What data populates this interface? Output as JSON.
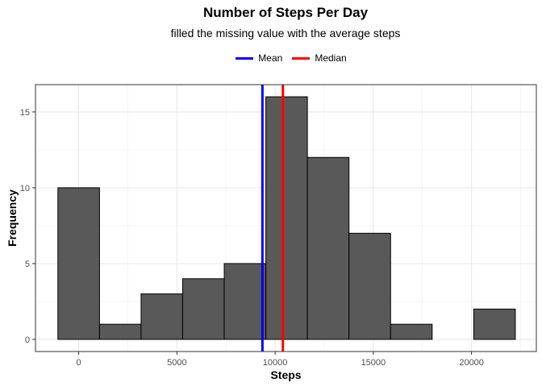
{
  "chart_data": {
    "type": "bar",
    "title": "Number of Steps Per Day",
    "subtitle": "filled the missing value with the average steps",
    "xlabel": "Steps",
    "ylabel": "Frequency",
    "xlim": [
      -2200,
      23300
    ],
    "ylim": [
      -0.8,
      16.8
    ],
    "x_ticks": [
      0,
      5000,
      10000,
      15000,
      20000
    ],
    "y_ticks": [
      0,
      5,
      10,
      15
    ],
    "grid": true,
    "legend_position": "top",
    "bin_width": 2117,
    "bins": [
      {
        "start": -1059,
        "end": 1059,
        "count": 10
      },
      {
        "start": 1059,
        "end": 3176,
        "count": 1
      },
      {
        "start": 3176,
        "end": 5293,
        "count": 3
      },
      {
        "start": 5293,
        "end": 7410,
        "count": 4
      },
      {
        "start": 7410,
        "end": 9527,
        "count": 5
      },
      {
        "start": 9527,
        "end": 11644,
        "count": 16
      },
      {
        "start": 11644,
        "end": 13761,
        "count": 12
      },
      {
        "start": 13761,
        "end": 15878,
        "count": 7
      },
      {
        "start": 15878,
        "end": 17995,
        "count": 1
      },
      {
        "start": 17995,
        "end": 20112,
        "count": 0
      },
      {
        "start": 20112,
        "end": 22229,
        "count": 2
      }
    ],
    "bar_fill": "#595959",
    "bar_outline": "#000000",
    "reference_lines": [
      {
        "name": "Mean",
        "value": 9354,
        "color": "#0000ff"
      },
      {
        "name": "Median",
        "value": 10395,
        "color": "#ff0000"
      }
    ]
  }
}
